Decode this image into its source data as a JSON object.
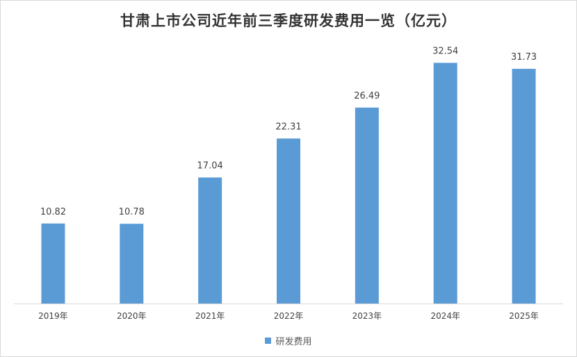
{
  "chart_data": {
    "type": "bar",
    "title": "甘肃上市公司近年前三季度研发费用一览（亿元）",
    "categories": [
      "2019年",
      "2020年",
      "2021年",
      "2022年",
      "2023年",
      "2024年",
      "2025年"
    ],
    "series": [
      {
        "name": "研发费用",
        "values": [
          10.82,
          10.78,
          17.04,
          22.31,
          26.49,
          32.54,
          31.73
        ],
        "labels": [
          "10.82",
          "10.78",
          "17.04",
          "22.31",
          "26.49",
          "32.54",
          "31.73"
        ],
        "color": "#5b9bd5"
      }
    ],
    "ylim": [
      0,
      35
    ],
    "grid": false,
    "legend_position": "bottom",
    "xlabel": "",
    "ylabel": ""
  }
}
